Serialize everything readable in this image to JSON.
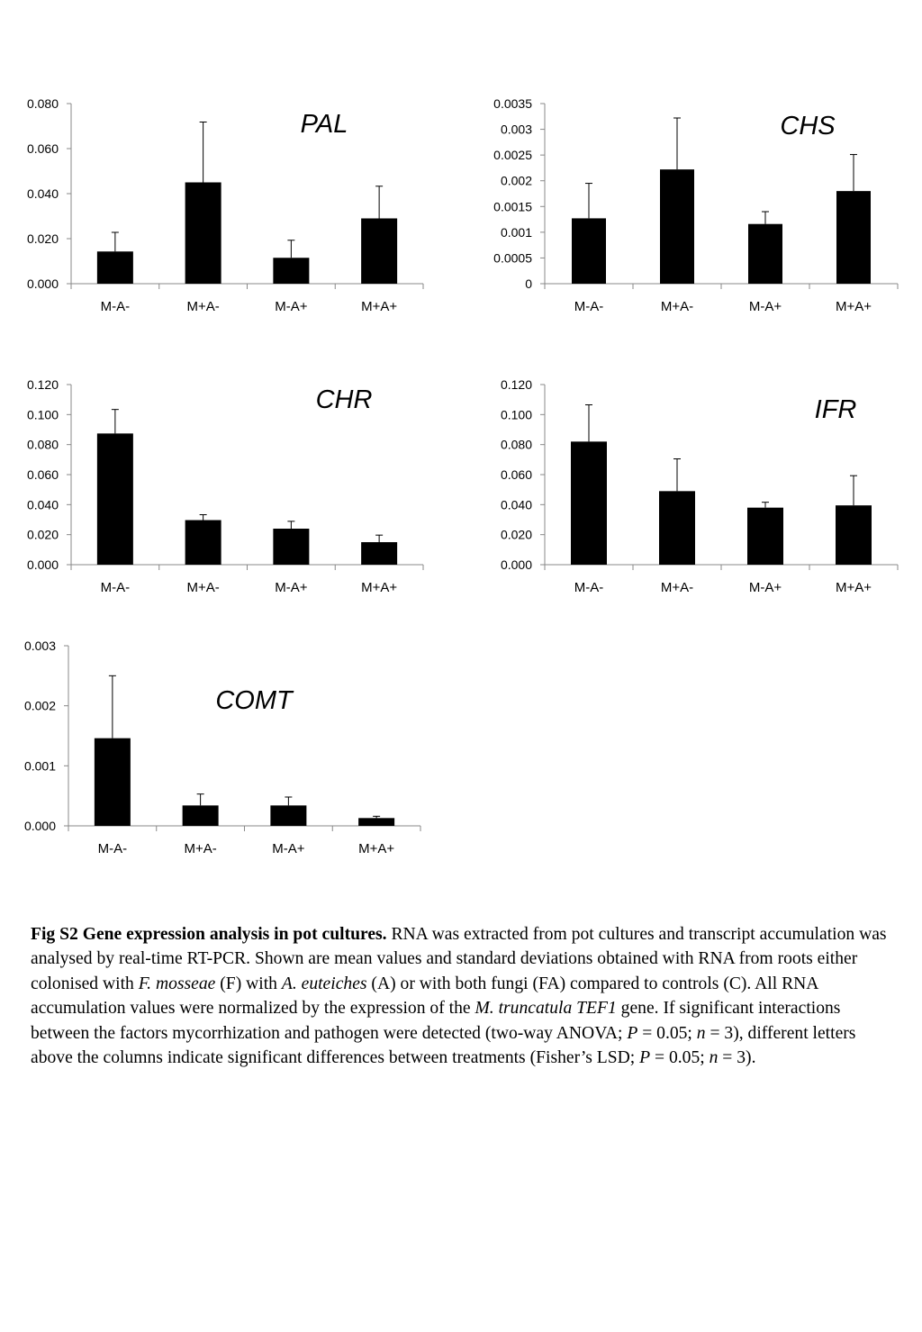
{
  "chart_data": [
    {
      "type": "bar",
      "title": "PAL",
      "categories": [
        "M-A-",
        "M+A-",
        "M-A+",
        "M+A+"
      ],
      "values": [
        0.0143,
        0.045,
        0.0115,
        0.029
      ],
      "errors": [
        0.0085,
        0.0268,
        0.0078,
        0.0143
      ],
      "ylim": [
        0,
        0.08
      ],
      "yticks": [
        "0.000",
        "0.020",
        "0.040",
        "0.060",
        "0.080"
      ]
    },
    {
      "type": "bar",
      "title": "CHS",
      "categories": [
        "M-A-",
        "M+A-",
        "M-A+",
        "M+A+"
      ],
      "values": [
        0.00127,
        0.00222,
        0.00116,
        0.0018
      ],
      "errors": [
        0.00068,
        0.001,
        0.00024,
        0.00071
      ],
      "ylim": [
        0,
        0.0035
      ],
      "yticks": [
        "0",
        "0.0005",
        "0.001",
        "0.0015",
        "0.002",
        "0.0025",
        "0.003",
        "0.0035"
      ]
    },
    {
      "type": "bar",
      "title": "CHR",
      "categories": [
        "M-A-",
        "M+A-",
        "M-A+",
        "M+A+"
      ],
      "values": [
        0.0874,
        0.0297,
        0.024,
        0.015
      ],
      "errors": [
        0.016,
        0.0036,
        0.0049,
        0.0047
      ],
      "ylim": [
        0,
        0.12
      ],
      "yticks": [
        "0.000",
        "0.020",
        "0.040",
        "0.060",
        "0.080",
        "0.100",
        "0.120"
      ]
    },
    {
      "type": "bar",
      "title": "IFR",
      "categories": [
        "M-A-",
        "M+A-",
        "M-A+",
        "M+A+"
      ],
      "values": [
        0.082,
        0.049,
        0.038,
        0.0395
      ],
      "errors": [
        0.0245,
        0.0215,
        0.0036,
        0.0198
      ],
      "ylim": [
        0,
        0.12
      ],
      "yticks": [
        "0.000",
        "0.020",
        "0.040",
        "0.060",
        "0.080",
        "0.100",
        "0.120"
      ]
    },
    {
      "type": "bar",
      "title": "COMT",
      "categories": [
        "M-A-",
        "M+A-",
        "M-A+",
        "M+A+"
      ],
      "values": [
        0.00146,
        0.00034,
        0.00034,
        0.00013
      ],
      "errors": [
        0.00104,
        0.00019,
        0.00014,
        3e-05
      ],
      "ylim": [
        0,
        0.003
      ],
      "yticks": [
        "0.000",
        "0.001",
        "0.002",
        "0.003"
      ]
    }
  ],
  "caption": {
    "bold": "Fig S2 Gene expression analysis in pot cultures.",
    "t1": " RNA was extracted from pot cultures and transcript accumulation was analysed by real-time RT-PCR. Shown are mean values and standard deviations obtained with RNA from roots either colonised with ",
    "i1": "F. mosseae",
    "t2": " (F) with ",
    "i2": "A. euteiches",
    "t3": " (A) or with both fungi (FA) compared to controls (C).  All RNA accumulation values were normalized by the expression of the ",
    "i3": "M. truncatula TEF1",
    "t4": " gene. If significant interactions between the factors mycorrhization and pathogen were detected (two-way ANOVA; ",
    "i4": "P",
    "t5": " = 0.05; ",
    "i5": "n",
    "t6": " = 3), different letters above the columns indicate significant differences between treatments (Fisher’s LSD; ",
    "i6": "P",
    "t7": " = 0.05; ",
    "i7": "n",
    "t8": " = 3)."
  }
}
